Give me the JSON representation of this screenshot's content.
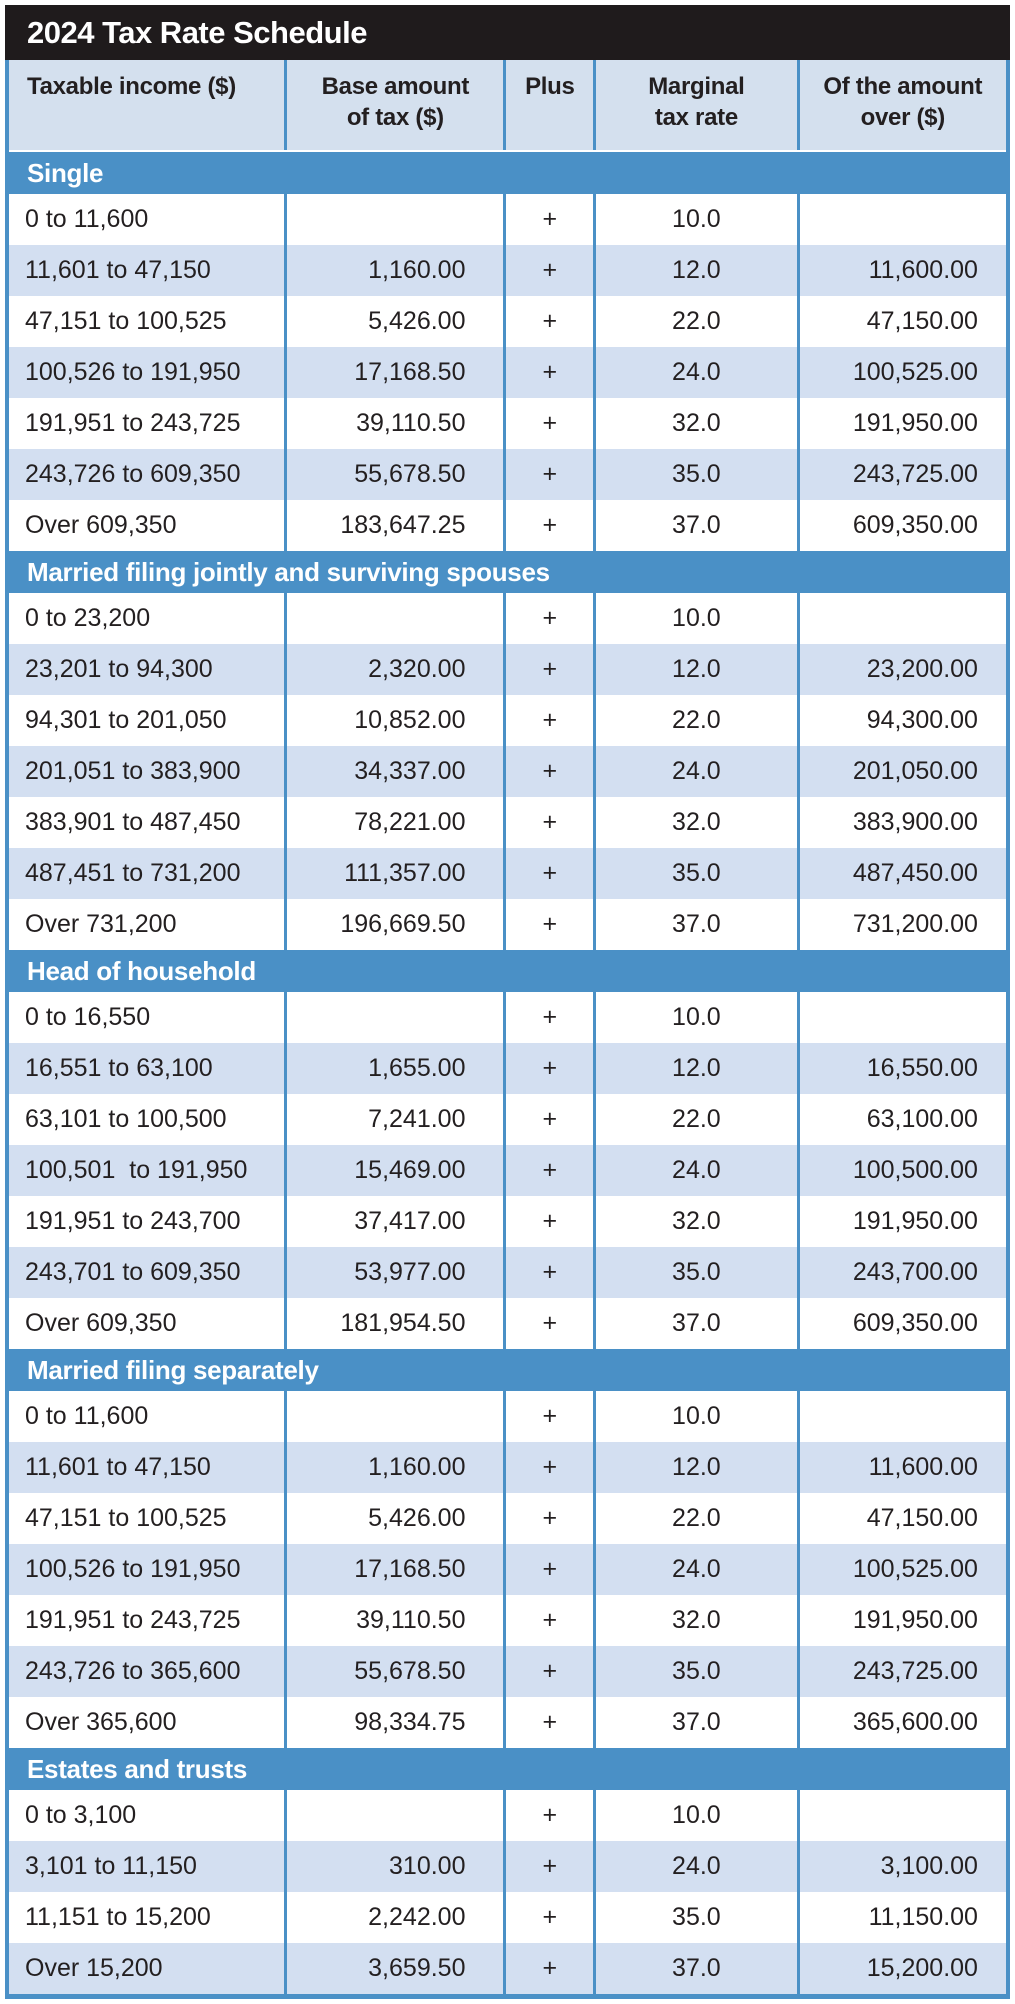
{
  "title": "2024 Tax Rate Schedule",
  "colors": {
    "accent_blue": "#4a90c6",
    "stripe_blue": "#d3dff1",
    "header_blue": "#d4e0ee",
    "title_bar_black": "#1f1b1c",
    "text_dark": "#231f20",
    "text_white": "#ffffff"
  },
  "chart_data": {
    "type": "table",
    "title": "2024 Tax Rate Schedule",
    "columns": [
      "Taxable income ($)",
      "Base amount\nof tax ($)",
      "Plus",
      "Marginal\ntax rate",
      "Of the amount\nover ($)"
    ],
    "sections": [
      {
        "name": "Single",
        "rows": [
          [
            "0 to 11,600",
            "",
            "+",
            "10.0",
            ""
          ],
          [
            "11,601 to 47,150",
            "1,160.00",
            "+",
            "12.0",
            "11,600.00"
          ],
          [
            "47,151 to 100,525",
            "5,426.00",
            "+",
            "22.0",
            "47,150.00"
          ],
          [
            "100,526 to 191,950",
            "17,168.50",
            "+",
            "24.0",
            "100,525.00"
          ],
          [
            "191,951 to 243,725",
            "39,110.50",
            "+",
            "32.0",
            "191,950.00"
          ],
          [
            "243,726 to 609,350",
            "55,678.50",
            "+",
            "35.0",
            "243,725.00"
          ],
          [
            "Over 609,350",
            "183,647.25",
            "+",
            "37.0",
            "609,350.00"
          ]
        ]
      },
      {
        "name": "Married filing jointly and surviving spouses",
        "rows": [
          [
            "0 to 23,200",
            "",
            "+",
            "10.0",
            ""
          ],
          [
            "23,201 to 94,300",
            "2,320.00",
            "+",
            "12.0",
            "23,200.00"
          ],
          [
            "94,301 to 201,050",
            "10,852.00",
            "+",
            "22.0",
            "94,300.00"
          ],
          [
            "201,051 to 383,900",
            "34,337.00",
            "+",
            "24.0",
            "201,050.00"
          ],
          [
            "383,901 to 487,450",
            "78,221.00",
            "+",
            "32.0",
            "383,900.00"
          ],
          [
            "487,451 to 731,200",
            "111,357.00",
            "+",
            "35.0",
            "487,450.00"
          ],
          [
            "Over 731,200",
            "196,669.50",
            "+",
            "37.0",
            "731,200.00"
          ]
        ]
      },
      {
        "name": "Head of household",
        "rows": [
          [
            "0 to 16,550",
            "",
            "+",
            "10.0",
            ""
          ],
          [
            "16,551 to 63,100",
            "1,655.00",
            "+",
            "12.0",
            "16,550.00"
          ],
          [
            "63,101 to 100,500",
            "7,241.00",
            "+",
            "22.0",
            "63,100.00"
          ],
          [
            "100,501  to 191,950",
            "15,469.00",
            "+",
            "24.0",
            "100,500.00"
          ],
          [
            "191,951 to 243,700",
            "37,417.00",
            "+",
            "32.0",
            "191,950.00"
          ],
          [
            "243,701 to 609,350",
            "53,977.00",
            "+",
            "35.0",
            "243,700.00"
          ],
          [
            "Over 609,350",
            "181,954.50",
            "+",
            "37.0",
            "609,350.00"
          ]
        ]
      },
      {
        "name": "Married filing separately",
        "rows": [
          [
            "0 to 11,600",
            "",
            "+",
            "10.0",
            ""
          ],
          [
            "11,601 to 47,150",
            "1,160.00",
            "+",
            "12.0",
            "11,600.00"
          ],
          [
            "47,151 to 100,525",
            "5,426.00",
            "+",
            "22.0",
            "47,150.00"
          ],
          [
            "100,526 to 191,950",
            "17,168.50",
            "+",
            "24.0",
            "100,525.00"
          ],
          [
            "191,951 to 243,725",
            "39,110.50",
            "+",
            "32.0",
            "191,950.00"
          ],
          [
            "243,726 to 365,600",
            "55,678.50",
            "+",
            "35.0",
            "243,725.00"
          ],
          [
            "Over 365,600",
            "98,334.75",
            "+",
            "37.0",
            "365,600.00"
          ]
        ]
      },
      {
        "name": "Estates and trusts",
        "rows": [
          [
            "0 to 3,100",
            "",
            "+",
            "10.0",
            ""
          ],
          [
            "3,101 to 11,150",
            "310.00",
            "+",
            "24.0",
            "3,100.00"
          ],
          [
            "11,151 to 15,200",
            "2,242.00",
            "+",
            "35.0",
            "11,150.00"
          ],
          [
            "Over 15,200",
            "3,659.50",
            "+",
            "37.0",
            "15,200.00"
          ]
        ]
      }
    ]
  }
}
